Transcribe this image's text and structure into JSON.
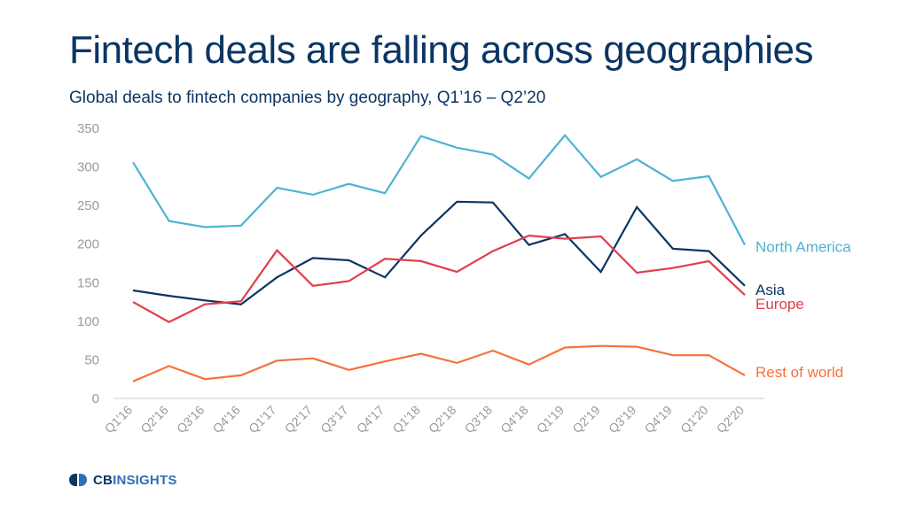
{
  "header": {
    "title": "Fintech deals are falling across geographies",
    "subtitle": "Global deals to fintech companies by geography, Q1’16 – Q2’20"
  },
  "logo": {
    "cb": "CB",
    "insights": "INSIGHTS"
  },
  "chart_data": {
    "type": "line",
    "title": "Fintech deals are falling across geographies",
    "subtitle": "Global deals to fintech companies by geography, Q1’16 – Q2’20",
    "xlabel": "",
    "ylabel": "",
    "ylim": [
      0,
      350
    ],
    "yticks": [
      0,
      50,
      100,
      150,
      200,
      250,
      300,
      350
    ],
    "grid": false,
    "legend": "end-of-line labels (right)",
    "categories": [
      "Q1'16",
      "Q2'16",
      "Q3'16",
      "Q4'16",
      "Q1'17",
      "Q2'17",
      "Q3'17",
      "Q4'17",
      "Q1'18",
      "Q2'18",
      "Q3'18",
      "Q4'18",
      "Q1'19",
      "Q2'19",
      "Q3'19",
      "Q4'19",
      "Q1'20",
      "Q2'20"
    ],
    "series": [
      {
        "name": "North America",
        "color": "#4fb3d3",
        "values": [
          306,
          230,
          222,
          224,
          273,
          264,
          278,
          266,
          340,
          325,
          316,
          285,
          341,
          287,
          310,
          282,
          288,
          199
        ]
      },
      {
        "name": "Asia",
        "color": "#0b3563",
        "values": [
          140,
          133,
          127,
          122,
          157,
          182,
          179,
          157,
          211,
          255,
          254,
          199,
          213,
          164,
          248,
          194,
          191,
          146
        ]
      },
      {
        "name": "Europe",
        "color": "#e23d4c",
        "values": [
          125,
          99,
          122,
          126,
          192,
          146,
          152,
          181,
          178,
          164,
          191,
          211,
          207,
          210,
          163,
          169,
          178,
          134
        ]
      },
      {
        "name": "Rest of world",
        "color": "#f5723a",
        "values": [
          22,
          42,
          25,
          30,
          49,
          52,
          37,
          48,
          58,
          46,
          62,
          44,
          66,
          68,
          67,
          56,
          56,
          30
        ]
      }
    ]
  }
}
